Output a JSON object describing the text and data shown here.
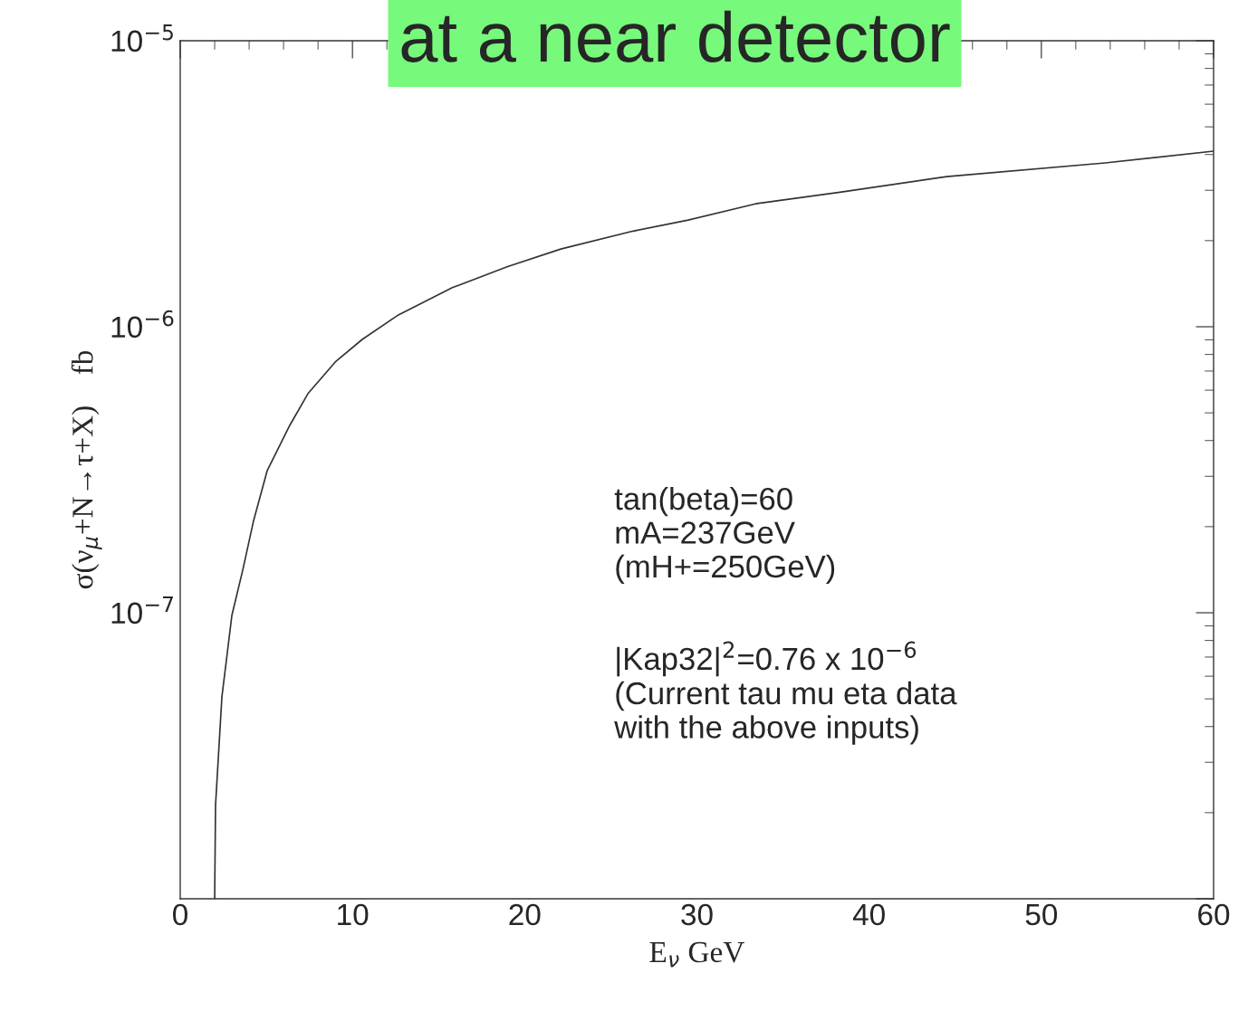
{
  "chart_data": {
    "type": "line",
    "title": "at a near detector",
    "xlabel": "E$_{ν}$ GeV",
    "ylabel": "σ(ν$_{μ}$+N→τ+X)    fb",
    "series": [
      {
        "color": "#333333",
        "x": [
          2.0,
          2.05,
          2.42,
          3.0,
          3.63,
          4.26,
          5.05,
          6.36,
          7.41,
          9.0,
          10.57,
          12.67,
          15.8,
          18.98,
          22.1,
          26.3,
          29.5,
          33.4,
          38.4,
          44.5,
          53.7,
          60
        ],
        "values": [
          1e-08,
          2.12e-08,
          5.08e-08,
          9.8e-08,
          1.41e-07,
          2.1e-07,
          3.14e-07,
          4.52e-07,
          5.83e-07,
          7.53e-07,
          9.03e-07,
          1.1e-06,
          1.37e-06,
          1.62e-06,
          1.87e-06,
          2.16e-06,
          2.36e-06,
          2.69e-06,
          2.96e-06,
          3.35e-06,
          3.74e-06,
          4.11e-06
        ]
      }
    ],
    "log": "y",
    "xlim": [
      0,
      60
    ],
    "ylim": [
      1e-08,
      1e-05
    ],
    "xticks": [
      0,
      10,
      20,
      30,
      40,
      50,
      60
    ],
    "yticks": [
      {
        "value": 1e-05,
        "label": "10$^{−5}$"
      },
      {
        "value": 1e-06,
        "label": "10$^{−6}$"
      },
      {
        "value": 1e-07,
        "label": "10$^{−7}$"
      },
      {
        "value": 1e-08,
        "label": null
      }
    ],
    "annotations": [
      "tan(beta)=60\nmA=237GeV\n(mH+=250GeV)",
      "|Kap32|$^{2}$=0.76 x 10$^{−6}$\n(Current tau mu eta data\nwith the above inputs)"
    ],
    "grid": false,
    "legend": false,
    "line_style": "solid",
    "marker": "none"
  }
}
